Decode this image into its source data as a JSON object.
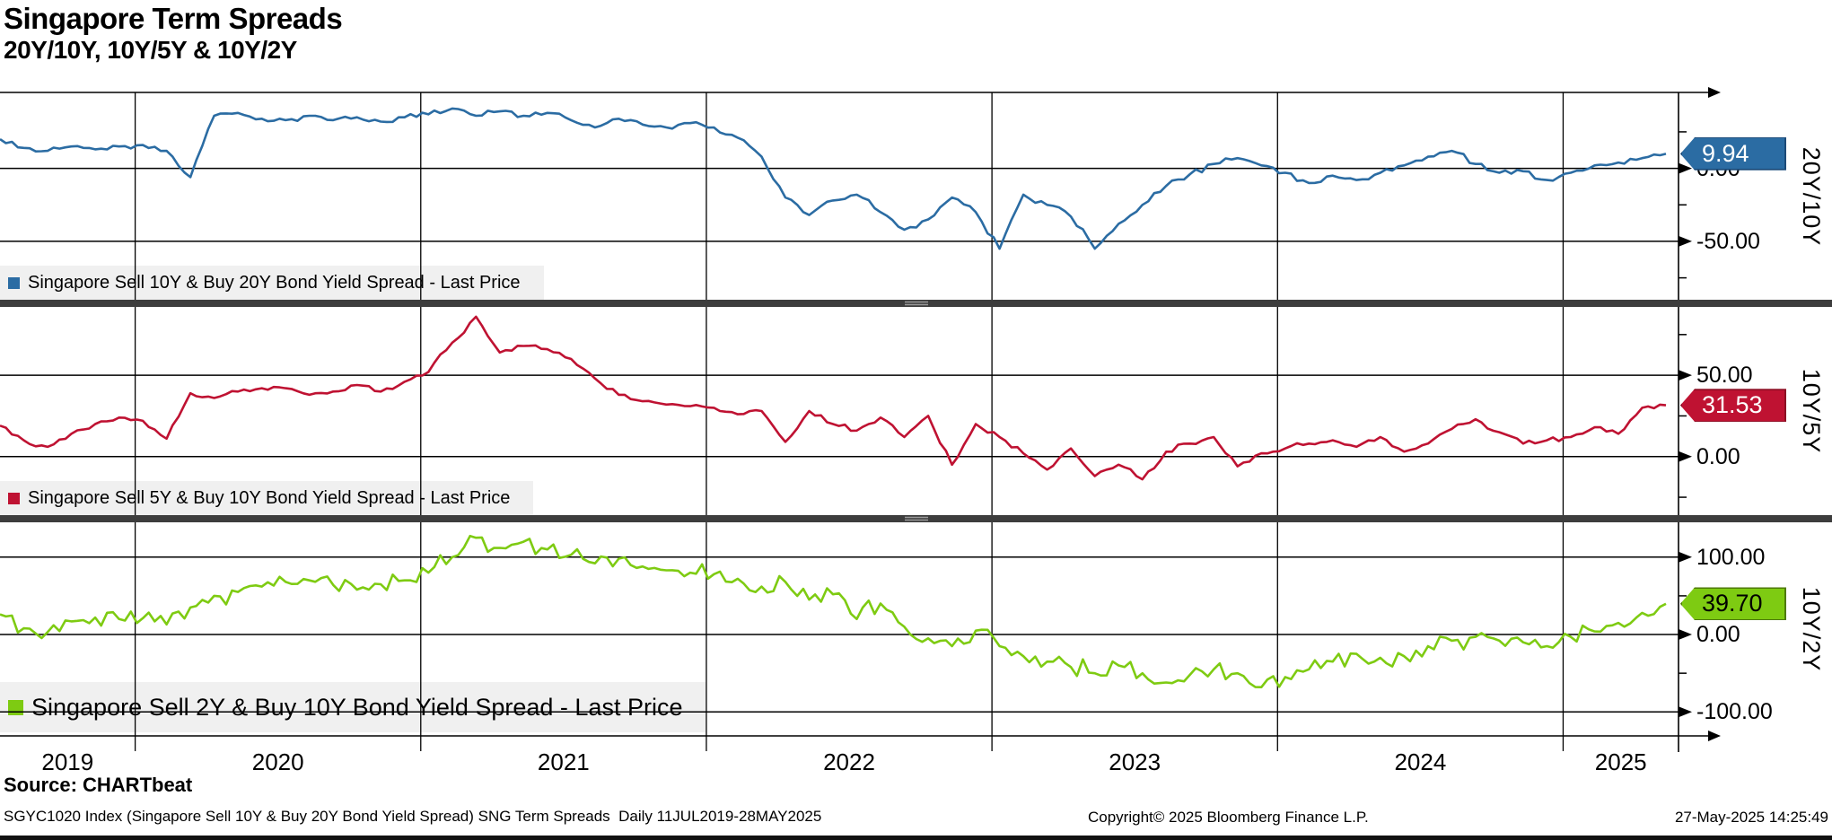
{
  "header": {
    "title": "Singapore Term Spreads",
    "subtitle": "20Y/10Y, 10Y/5Y & 10Y/2Y"
  },
  "colors": {
    "blue": "#2b6ca3",
    "blue_border": "#1c4a77",
    "red": "#bf1232",
    "red_border": "#8c0e24",
    "green": "#7ecb12",
    "green_border": "#4e7a08",
    "separator": "#3d3d3d",
    "legend_bg": "#f0f0f0",
    "grid": "#000000"
  },
  "x_axis": {
    "years": [
      "2019",
      "2020",
      "2021",
      "2022",
      "2023",
      "2024",
      "2025"
    ],
    "start": "11JUL2019",
    "end": "28MAY2025",
    "cadence": "Daily"
  },
  "chart_data": [
    {
      "type": "line",
      "panel": "top",
      "side_label": "20Y/10Y",
      "legend": "Singapore Sell 10Y & Buy 20Y Bond Yield Spread - Last Price",
      "line_color": "#2b6ca3",
      "badge_color": "#2b6ca3",
      "badge_border": "#1c4a77",
      "badge_text_color": "#ffffff",
      "last_price": 9.94,
      "last_price_label": "9.94",
      "y_ticks_major": [
        {
          "value": 0,
          "label": "0.00"
        },
        {
          "value": -50,
          "label": "-50.00"
        }
      ],
      "y_ticks_minor": [
        25,
        -25,
        -75
      ],
      "ylim": [
        52,
        -90
      ],
      "x_monthly_start": "2019-07",
      "x_monthly_end": "2025-05",
      "values": [
        20,
        14,
        12,
        15,
        13,
        15,
        16,
        12,
        -6,
        36,
        38,
        34,
        33,
        36,
        33,
        35,
        32,
        35,
        37,
        41,
        36,
        39,
        36,
        38,
        33,
        28,
        34,
        30,
        28,
        31,
        28,
        21,
        8,
        -20,
        -32,
        -22,
        -18,
        -30,
        -42,
        -35,
        -20,
        -30,
        -55,
        -18,
        -25,
        -33,
        -55,
        -38,
        -25,
        -12,
        -4,
        3,
        7,
        2,
        -3,
        -10,
        -5,
        -8,
        -3,
        2,
        8,
        12,
        3,
        -3,
        -2,
        -8,
        -3,
        2,
        4,
        7,
        9.94
      ]
    },
    {
      "type": "line",
      "panel": "middle",
      "side_label": "10Y/5Y",
      "legend": "Singapore Sell 5Y & Buy 10Y Bond Yield Spread - Last Price",
      "line_color": "#bf1232",
      "badge_color": "#bf1232",
      "badge_border": "#8c0e24",
      "badge_text_color": "#ffffff",
      "last_price": 31.53,
      "last_price_label": "31.53",
      "y_ticks_major": [
        {
          "value": 50,
          "label": "50.00"
        },
        {
          "value": 0,
          "label": "0.00"
        }
      ],
      "y_ticks_minor": [
        75,
        25,
        -25
      ],
      "ylim": [
        92,
        -36
      ],
      "x_monthly_start": "2019-07",
      "x_monthly_end": "2025-05",
      "values": [
        19,
        10,
        6,
        14,
        20,
        24,
        22,
        11,
        39,
        36,
        40,
        42,
        42,
        38,
        40,
        44,
        40,
        46,
        52,
        70,
        86,
        64,
        68,
        66,
        60,
        48,
        38,
        34,
        32,
        31,
        30,
        26,
        28,
        9,
        28,
        20,
        16,
        24,
        12,
        25,
        -5,
        20,
        12,
        2,
        -8,
        5,
        -12,
        -5,
        -14,
        3,
        8,
        12,
        -6,
        2,
        5,
        8,
        10,
        6,
        12,
        3,
        8,
        17,
        23,
        15,
        8,
        10,
        12,
        18,
        14,
        30,
        31.53
      ]
    },
    {
      "type": "line",
      "panel": "bottom",
      "side_label": "10Y/2Y",
      "legend": "Singapore Sell 2Y & Buy 10Y Bond Yield Spread - Last Price",
      "line_color": "#7ecb12",
      "badge_color": "#7ecb12",
      "badge_border": "#4e7a08",
      "badge_text_color": "#000000",
      "last_price": 39.7,
      "last_price_label": "39.70",
      "y_ticks_major": [
        {
          "value": 100,
          "label": "100.00"
        },
        {
          "value": 0,
          "label": "0.00"
        },
        {
          "value": -100,
          "label": "-100.00"
        }
      ],
      "y_ticks_minor": [
        50,
        -50
      ],
      "ylim": [
        145,
        -131
      ],
      "x_monthly_start": "2019-07",
      "x_monthly_end": "2025-05",
      "values": [
        26,
        8,
        3,
        17,
        22,
        20,
        21,
        13,
        35,
        50,
        55,
        62,
        68,
        70,
        64,
        58,
        65,
        70,
        80,
        100,
        125,
        112,
        120,
        110,
        103,
        92,
        98,
        88,
        83,
        80,
        78,
        72,
        62,
        68,
        45,
        52,
        20,
        40,
        10,
        -5,
        -15,
        5,
        -15,
        -28,
        -35,
        -42,
        -50,
        -40,
        -50,
        -62,
        -52,
        -45,
        -50,
        -68,
        -55,
        -45,
        -35,
        -25,
        -30,
        -28,
        -15,
        -8,
        -3,
        -8,
        -10,
        -15,
        -3,
        4,
        15,
        28,
        39.7
      ]
    }
  ],
  "footer": {
    "source_label": "Source: CHARTbeat",
    "security_info": "SGYC1020 Index (Singapore Sell 10Y & Buy 20Y Bond Yield Spread) SNG Term Spreads  Daily 11JUL2019-28MAY2025",
    "copyright": "Copyright© 2025 Bloomberg Finance L.P.",
    "timestamp": "27-May-2025 14:25:49"
  }
}
